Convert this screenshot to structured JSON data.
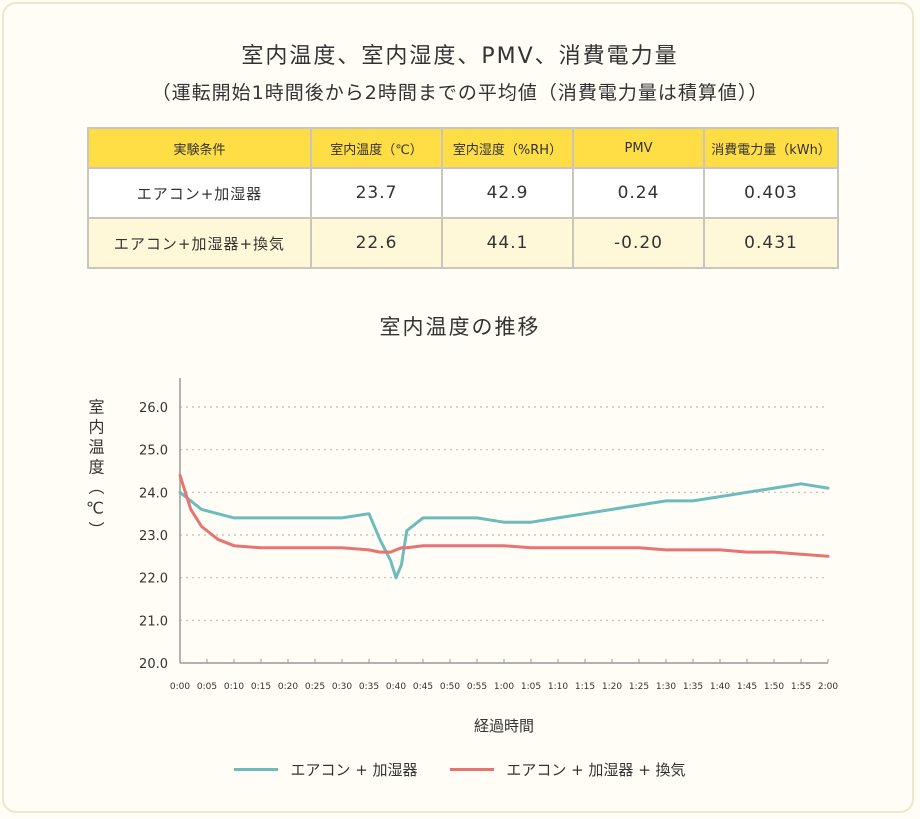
{
  "title": "室内温度、室内湿度、PMV、消費電力量",
  "subtitle": "（運転開始1時間後から2時間までの平均値（消費電力量は積算値））",
  "table": {
    "headers": [
      "実験条件",
      "室内温度（℃）",
      "室内湿度（%RH）",
      "PMV",
      "消費電力量（kWh）"
    ],
    "rows": [
      [
        "エアコン+加湿器",
        "23.7",
        "42.9",
        "0.24",
        "0.403"
      ],
      [
        "エアコン+加湿器+換気",
        "22.6",
        "44.1",
        "-0.20",
        "0.431"
      ]
    ]
  },
  "chart_data": {
    "type": "line",
    "title": "室内温度の推移",
    "xlabel": "経過時間",
    "ylabel": "室内温度（℃）",
    "ylim": [
      20.0,
      26.0
    ],
    "yticks": [
      "20.0",
      "21.0",
      "22.0",
      "23.0",
      "24.0",
      "25.0",
      "26.0"
    ],
    "xticks": [
      "0:00",
      "0:05",
      "0:10",
      "0:15",
      "0:20",
      "0:25",
      "0:30",
      "0:35",
      "0:40",
      "0:45",
      "0:50",
      "0:55",
      "1:00",
      "1:05",
      "1:10",
      "1:15",
      "1:20",
      "1:25",
      "1:30",
      "1:35",
      "1:40",
      "1:45",
      "1:50",
      "1:55",
      "2:00"
    ],
    "x_minutes": [
      0,
      2,
      4,
      7,
      10,
      15,
      20,
      25,
      30,
      35,
      37,
      39,
      40,
      41,
      42,
      45,
      50,
      55,
      60,
      65,
      70,
      75,
      80,
      85,
      90,
      95,
      100,
      105,
      110,
      115,
      120
    ],
    "grid": "horizontal-dotted",
    "legend_position": "bottom",
    "series": [
      {
        "name": "エアコン + 加湿器",
        "color": "#6dbcbc",
        "values": [
          24.0,
          23.8,
          23.6,
          23.5,
          23.4,
          23.4,
          23.4,
          23.4,
          23.4,
          23.5,
          22.9,
          22.4,
          22.0,
          22.3,
          23.1,
          23.4,
          23.4,
          23.4,
          23.3,
          23.3,
          23.4,
          23.5,
          23.6,
          23.7,
          23.8,
          23.8,
          23.9,
          24.0,
          24.1,
          24.2,
          24.1
        ]
      },
      {
        "name": "エアコン + 加湿器 + 換気",
        "color": "#e77472",
        "values": [
          24.4,
          23.6,
          23.2,
          22.9,
          22.75,
          22.7,
          22.7,
          22.7,
          22.7,
          22.65,
          22.6,
          22.6,
          22.65,
          22.7,
          22.7,
          22.75,
          22.75,
          22.75,
          22.75,
          22.7,
          22.7,
          22.7,
          22.7,
          22.7,
          22.65,
          22.65,
          22.65,
          22.6,
          22.6,
          22.55,
          22.5
        ]
      }
    ]
  }
}
